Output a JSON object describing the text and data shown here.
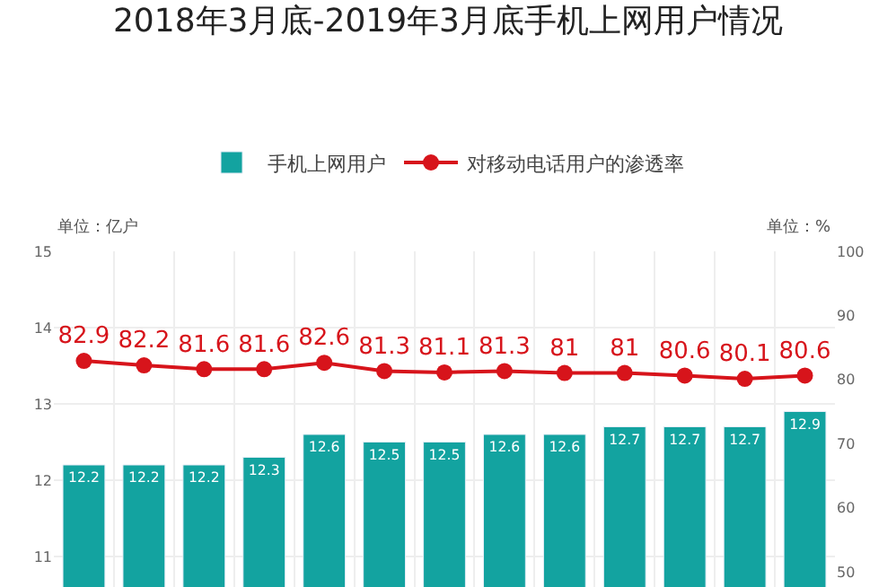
{
  "chart_data": {
    "type": "bar",
    "title": "2018年3月底-2019年3月底手机上网用户情况",
    "categories": [
      null,
      null,
      null,
      null,
      null,
      null,
      null,
      null,
      null,
      null,
      null,
      null,
      null
    ],
    "series": [
      {
        "name": "手机上网用户",
        "color": "#13a3a0",
        "values": [
          12.2,
          12.2,
          12.2,
          12.3,
          12.6,
          12.5,
          12.5,
          12.6,
          12.6,
          12.7,
          12.7,
          12.7,
          12.9
        ]
      },
      {
        "name": "对移动电话用户的渗透率",
        "type": "line",
        "axis": "y2",
        "color": "#d7141b",
        "values": [
          82.9,
          82.2,
          81.6,
          81.6,
          82.6,
          81.3,
          81.1,
          81.3,
          81,
          81,
          80.6,
          80.1,
          80.6
        ]
      }
    ],
    "ylim": [
      10.6,
      15
    ],
    "yticks": [
      11,
      12,
      13,
      14,
      15
    ],
    "y2lim": [
      47.6,
      100
    ],
    "y2ticks": [
      50,
      60,
      70,
      80,
      90,
      100
    ],
    "annotations": [
      "单位：亿户",
      "单位：%"
    ],
    "data_labels": true,
    "grid": true,
    "legend": "top",
    "marker": "circle",
    "line_style": "solid",
    "tick_labels": "y"
  }
}
